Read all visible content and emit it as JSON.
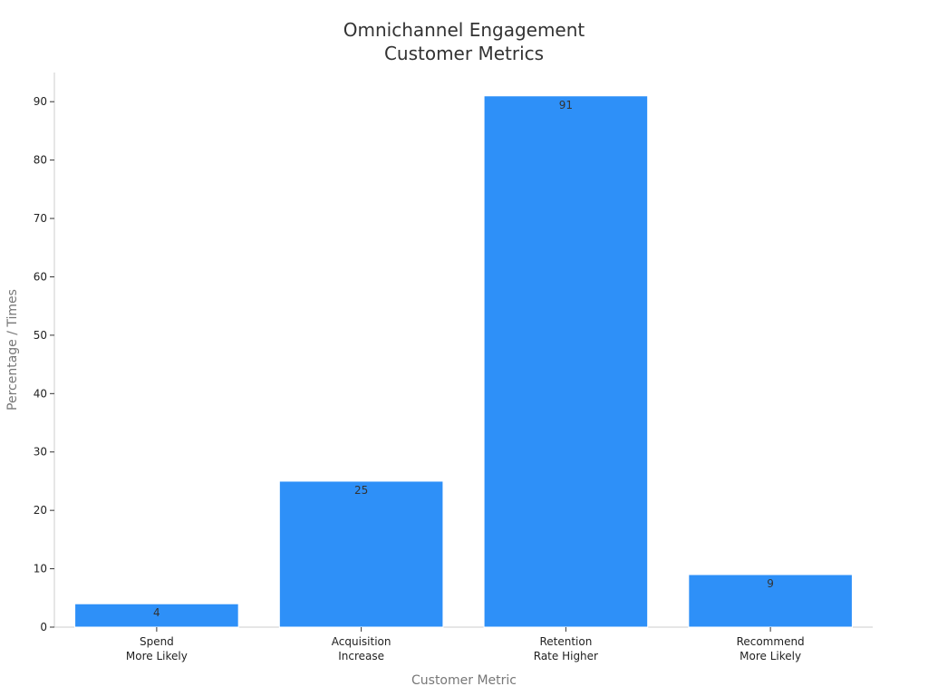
{
  "chart_data": {
    "type": "bar",
    "title": [
      "Omnichannel Engagement",
      "Customer Metrics"
    ],
    "xlabel": "Customer Metric",
    "ylabel": "Percentage / Times",
    "categories": [
      [
        "Spend",
        "More Likely"
      ],
      [
        "Acquisition",
        "Increase"
      ],
      [
        "Retention",
        "Rate Higher"
      ],
      [
        "Recommend",
        "More Likely"
      ]
    ],
    "values": [
      4,
      25,
      91,
      9
    ],
    "data_labels": [
      "4",
      "25",
      "91",
      "9"
    ],
    "ylim": [
      0,
      95
    ],
    "yticks": [
      0,
      10,
      20,
      30,
      40,
      50,
      60,
      70,
      80,
      90
    ],
    "grid": false,
    "legend": "none",
    "colors": {
      "bar": "#2e90f8",
      "bar_edge": "#ffffff",
      "axis": "#cccccc"
    }
  }
}
